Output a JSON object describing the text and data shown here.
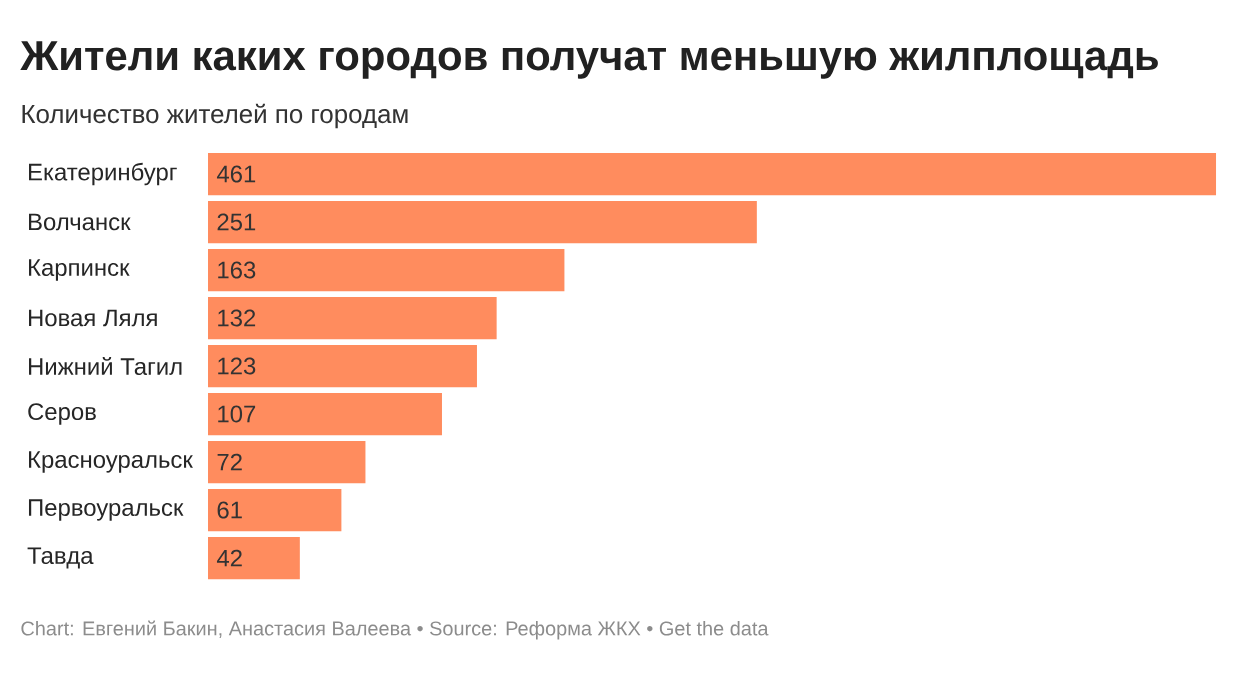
{
  "chart_data": {
    "type": "bar",
    "orientation": "horizontal",
    "title": "Жители каких городов получат меньшую жилплощадь",
    "subtitle": "Количество жителей по городам",
    "categories": [
      "Екатеринбург",
      "Волчанск",
      "Карпинск",
      "Новая Ляля",
      "Нижний Тагил",
      "Серов",
      "Красноуральск",
      "Первоуральск",
      "Тавда"
    ],
    "values": [
      461,
      251,
      163,
      132,
      123,
      107,
      72,
      61,
      42
    ],
    "color": "#ff8c5e",
    "data_labels": true,
    "annotations": [
      "Chart: Евгений Бакин, Анастасия Валеева • Source: Реформа ЖКХ • Get the data"
    ]
  }
}
